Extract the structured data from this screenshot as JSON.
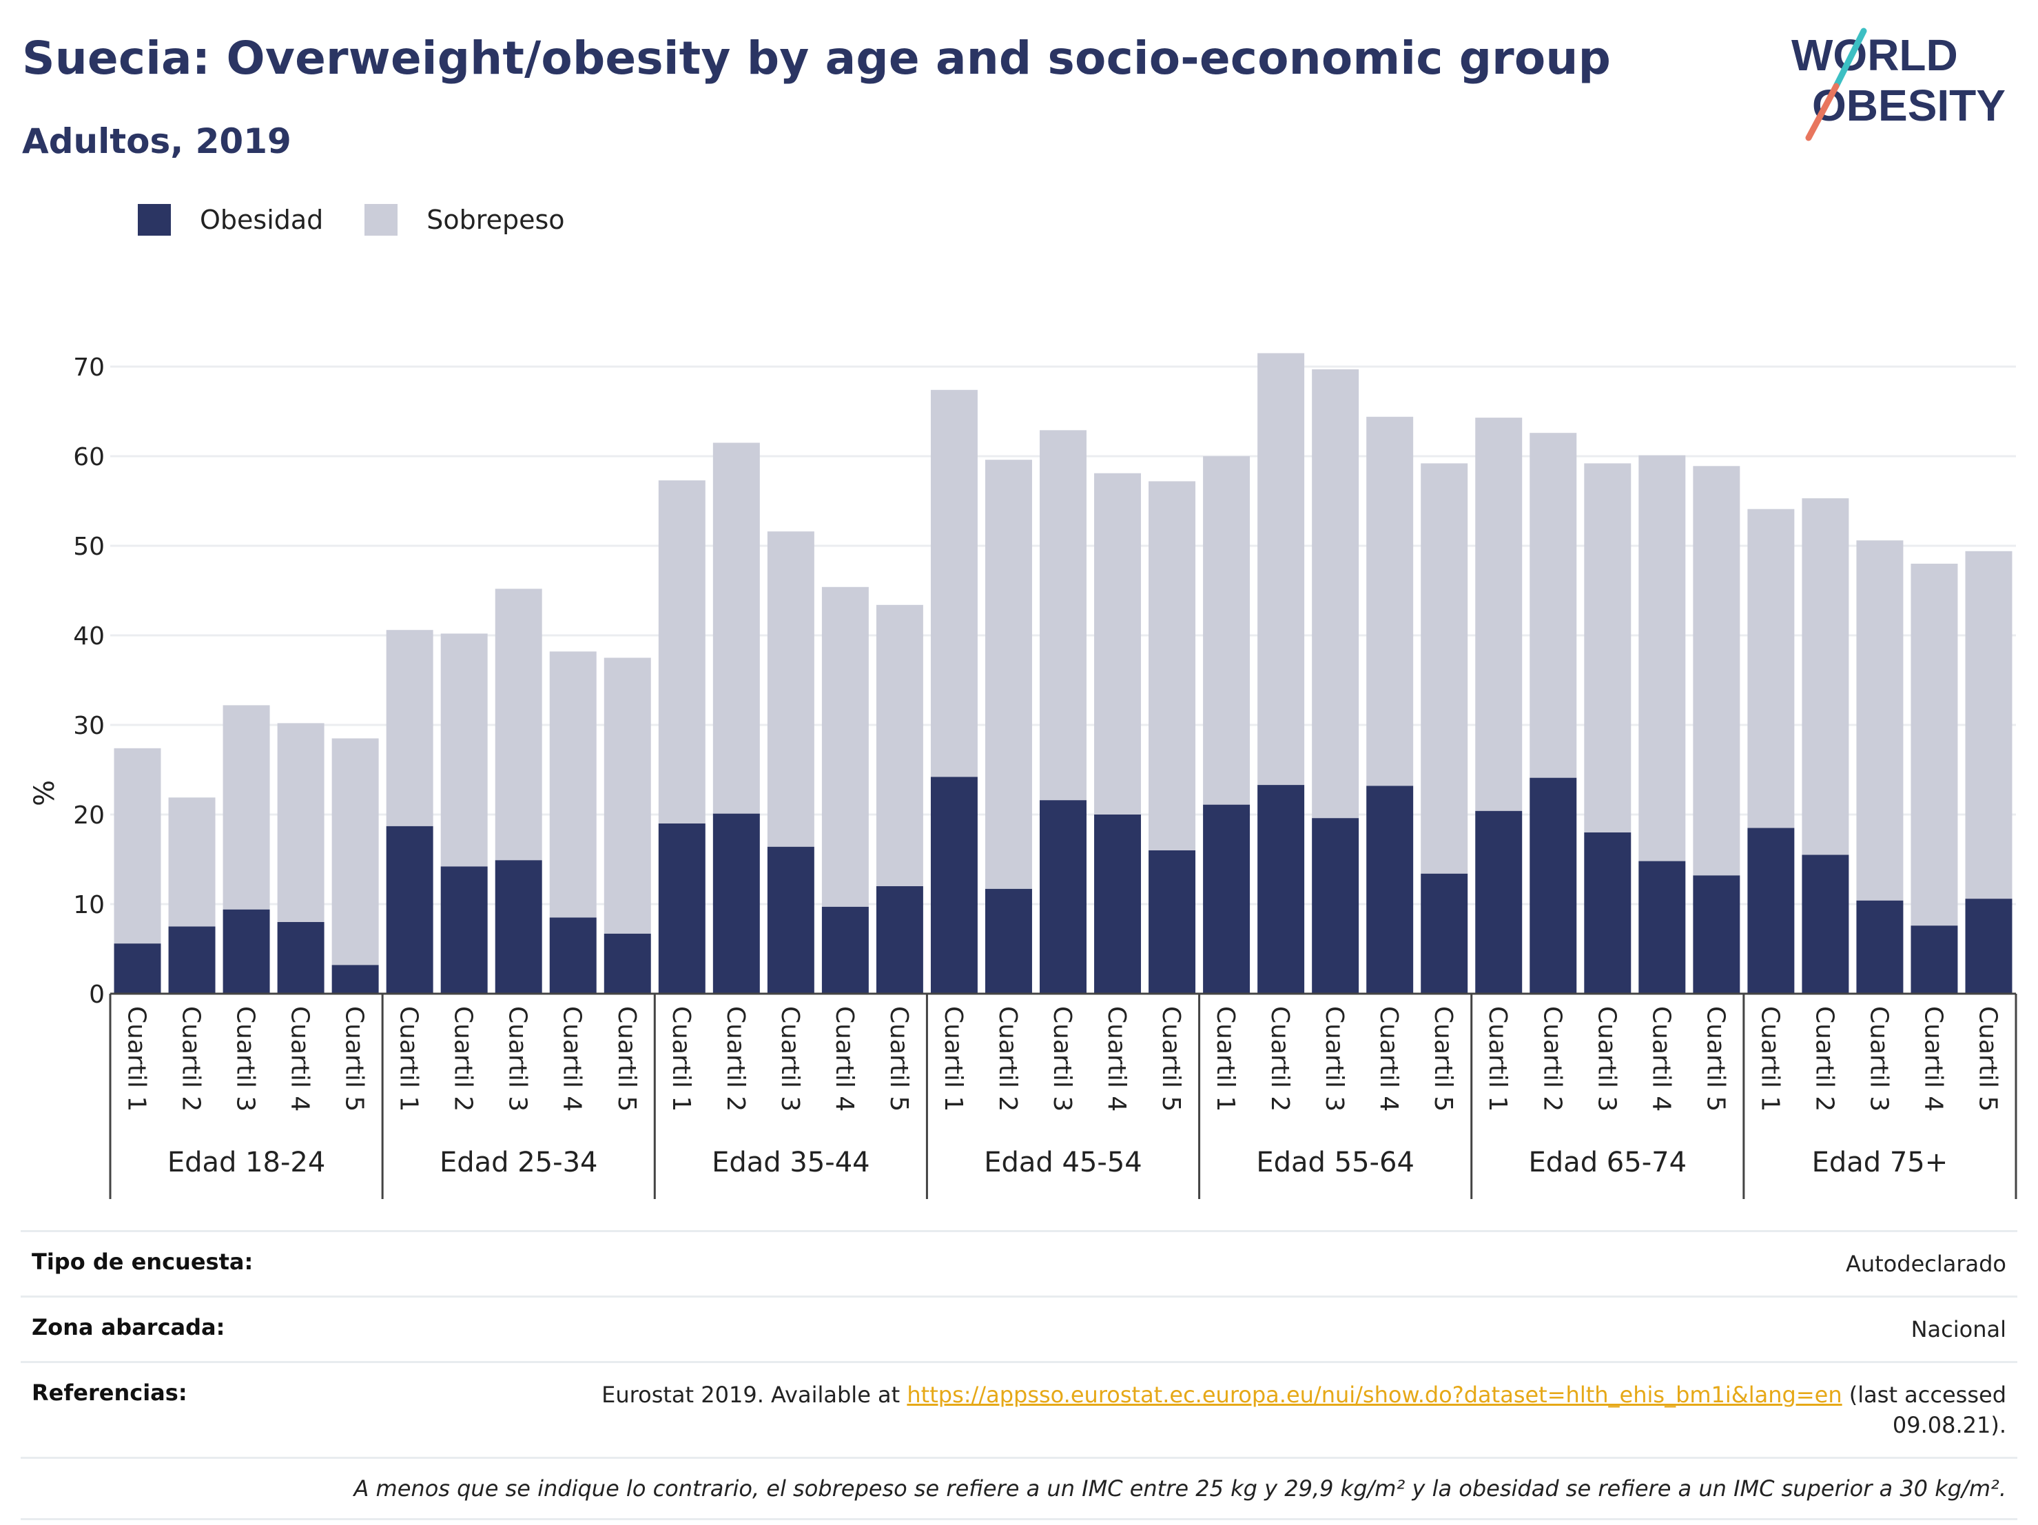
{
  "header": {
    "title": "Suecia: Overweight/obesity by age and socio-economic group",
    "subtitle": "Adultos, 2019"
  },
  "logo": {
    "line1": "WORLD",
    "line2": "OBESITY"
  },
  "colors": {
    "obesity": "#2b3563",
    "overweight": "#cbcdd9",
    "title": "#2b3563",
    "link": "#e6a817"
  },
  "chart_data": {
    "type": "bar",
    "stacked": true,
    "ylabel": "%",
    "ylim": [
      0,
      70
    ],
    "yticks": [
      0,
      10,
      20,
      30,
      40,
      50,
      60,
      70
    ],
    "grid": true,
    "legend_position": "top-left",
    "groups": [
      "Edad 18-24",
      "Edad 25-34",
      "Edad 35-44",
      "Edad 45-54",
      "Edad 55-64",
      "Edad 65-74",
      "Edad 75+"
    ],
    "subcategories": [
      "Cuartil 1",
      "Cuartil 2",
      "Cuartil 3",
      "Cuartil 4",
      "Cuartil 5"
    ],
    "series": [
      {
        "name": "Obesidad",
        "values": [
          5.6,
          7.5,
          9.4,
          8.0,
          3.2,
          18.7,
          14.2,
          14.9,
          8.5,
          6.7,
          19.0,
          20.1,
          16.4,
          9.7,
          12.0,
          24.2,
          11.7,
          21.6,
          20.0,
          16.0,
          21.1,
          23.3,
          19.6,
          23.2,
          13.4,
          20.4,
          24.1,
          18.0,
          14.8,
          13.2,
          18.5,
          15.5,
          10.4,
          7.6,
          10.6
        ]
      },
      {
        "name": "Sobrepeso",
        "values": [
          21.8,
          14.4,
          22.8,
          22.2,
          25.3,
          21.9,
          26.0,
          30.3,
          29.7,
          30.8,
          38.3,
          41.4,
          35.2,
          35.7,
          31.4,
          43.2,
          47.9,
          41.3,
          38.1,
          41.2,
          38.9,
          48.2,
          50.1,
          41.2,
          45.8,
          43.9,
          38.5,
          41.2,
          45.3,
          45.7,
          35.6,
          39.8,
          40.2,
          40.4,
          38.8
        ]
      }
    ]
  },
  "info": {
    "survey_type_label": "Tipo de encuesta:",
    "survey_type_value": "Autodeclarado",
    "area_label": "Zona abarcada:",
    "area_value": "Nacional",
    "references_label": "Referencias:",
    "references_prefix": "Eurostat 2019. Available at ",
    "references_link": "https://appsso.eurostat.ec.europa.eu/nui/show.do?dataset=hlth_ehis_bm1i&lang=en",
    "references_suffix": " (last accessed 09.08.21).",
    "note": "A menos que se indique lo contrario, el sobrepeso se refiere a un IMC entre 25 kg y 29,9 kg/m² y la obesidad se refiere a un IMC superior a 30 kg/m²."
  }
}
